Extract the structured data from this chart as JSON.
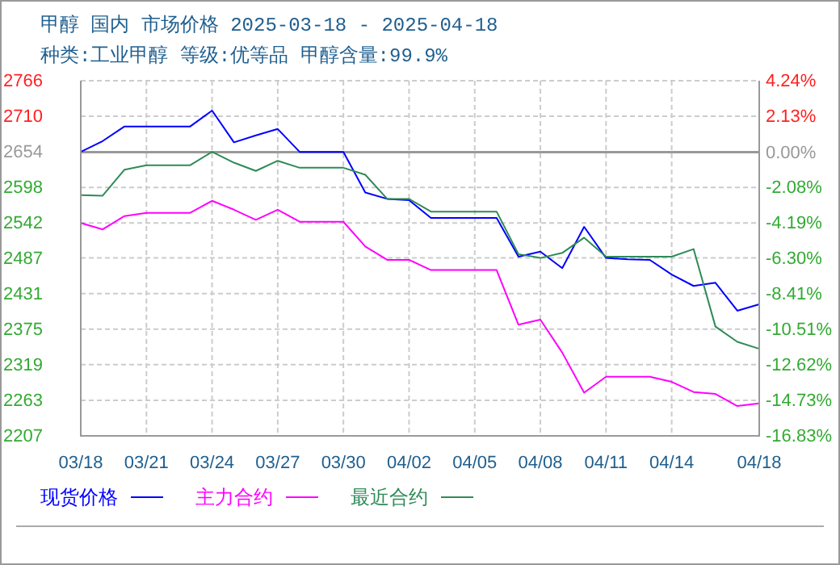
{
  "chart_data": {
    "type": "line",
    "title": "甲醇 国内 市场价格 2025-03-18 - 2025-04-18",
    "subtitle": "种类:工业甲醇 等级:优等品 甲醇含量:99.9%",
    "x": [
      "--03-18",
      "--03-19",
      "--03-20",
      "--03-21",
      "--03-22",
      "--03-23",
      "--03-24",
      "--03-25",
      "--03-26",
      "--03-27",
      "--03-28",
      "--03-29",
      "--03-30",
      "--03-31",
      "--04-01",
      "--04-02",
      "--04-03",
      "--04-04",
      "--04-05",
      "--04-06",
      "--04-07",
      "--04-08",
      "--04-09",
      "--04-10",
      "--04-11",
      "--04-12",
      "--04-13",
      "--04-14",
      "--04-15",
      "--04-16",
      "--04-17",
      "--04-18"
    ],
    "series": [
      {
        "name": "现货价格",
        "color": "#0000ff",
        "values": [
          2654,
          2671,
          2694,
          2694,
          2694,
          2694,
          2719,
          2669,
          2680,
          2690,
          2654,
          2654,
          2654,
          2590,
          2580,
          2578,
          2550,
          2550,
          2550,
          2550,
          2489,
          2497,
          2471,
          2536,
          2487,
          2485,
          2484,
          2461,
          2443,
          2448,
          2404,
          2414
        ]
      },
      {
        "name": "主力合约",
        "color": "#ff00ff",
        "values": [
          2542,
          2532,
          2553,
          2558,
          2558,
          2558,
          2577,
          2563,
          2547,
          2563,
          2544,
          2544,
          2544,
          2505,
          2484,
          2484,
          2468,
          2468,
          2468,
          2468,
          2382,
          2390,
          2338,
          2275,
          2300,
          2300,
          2300,
          2292,
          2276,
          2273,
          2254,
          2258
        ]
      },
      {
        "name": "最近合约",
        "color": "#2e8b57",
        "values": [
          2586,
          2585,
          2626,
          2633,
          2633,
          2633,
          2654,
          2637,
          2624,
          2640,
          2629,
          2629,
          2629,
          2618,
          2580,
          2580,
          2560,
          2560,
          2560,
          2560,
          2493,
          2487,
          2495,
          2519,
          2489,
          2489,
          2489,
          2489,
          2501,
          2379,
          2355,
          2344
        ]
      }
    ],
    "xlim": [
      "--03-18",
      "--04-18"
    ],
    "xticks": [
      {
        "value": "--03-18",
        "label": "03/18"
      },
      {
        "value": "--03-21",
        "label": "03/21"
      },
      {
        "value": "--03-24",
        "label": "03/24"
      },
      {
        "value": "--03-27",
        "label": "03/27"
      },
      {
        "value": "--03-30",
        "label": "03/30"
      },
      {
        "value": "--04-02",
        "label": "04/02"
      },
      {
        "value": "--04-05",
        "label": "04/05"
      },
      {
        "value": "--04-08",
        "label": "04/08"
      },
      {
        "value": "--04-11",
        "label": "04/11"
      },
      {
        "value": "--04-14",
        "label": "04/14"
      },
      {
        "value": "--04-18",
        "label": "04/18"
      }
    ],
    "ylim": [
      2207,
      2766
    ],
    "yticks": [
      2766,
      2710,
      2654,
      2598,
      2542,
      2487,
      2431,
      2375,
      2319,
      2263,
      2207
    ],
    "y2lim": [
      -16.83,
      4.24
    ],
    "y2ticks": [
      {
        "value": 4.24,
        "label": "4.24%"
      },
      {
        "value": 2.13,
        "label": "2.13%"
      },
      {
        "value": 0,
        "label": "0.00%"
      },
      {
        "value": -2.08,
        "label": "-2.08%"
      },
      {
        "value": -4.19,
        "label": "-4.19%"
      },
      {
        "value": -6.3,
        "label": "-6.30%"
      },
      {
        "value": -8.41,
        "label": "-8.41%"
      },
      {
        "value": -10.51,
        "label": "-10.51%"
      },
      {
        "value": -12.62,
        "label": "-12.62%"
      },
      {
        "value": -14.73,
        "label": "-14.73%"
      },
      {
        "value": -16.83,
        "label": "-16.83%"
      }
    ],
    "ref_lines": [
      {
        "axis": "y2",
        "value": 0,
        "color": "#999999",
        "line_style": "solid"
      }
    ],
    "grid": true,
    "legend": "bottom",
    "marker": "none",
    "line_style": "solid"
  }
}
